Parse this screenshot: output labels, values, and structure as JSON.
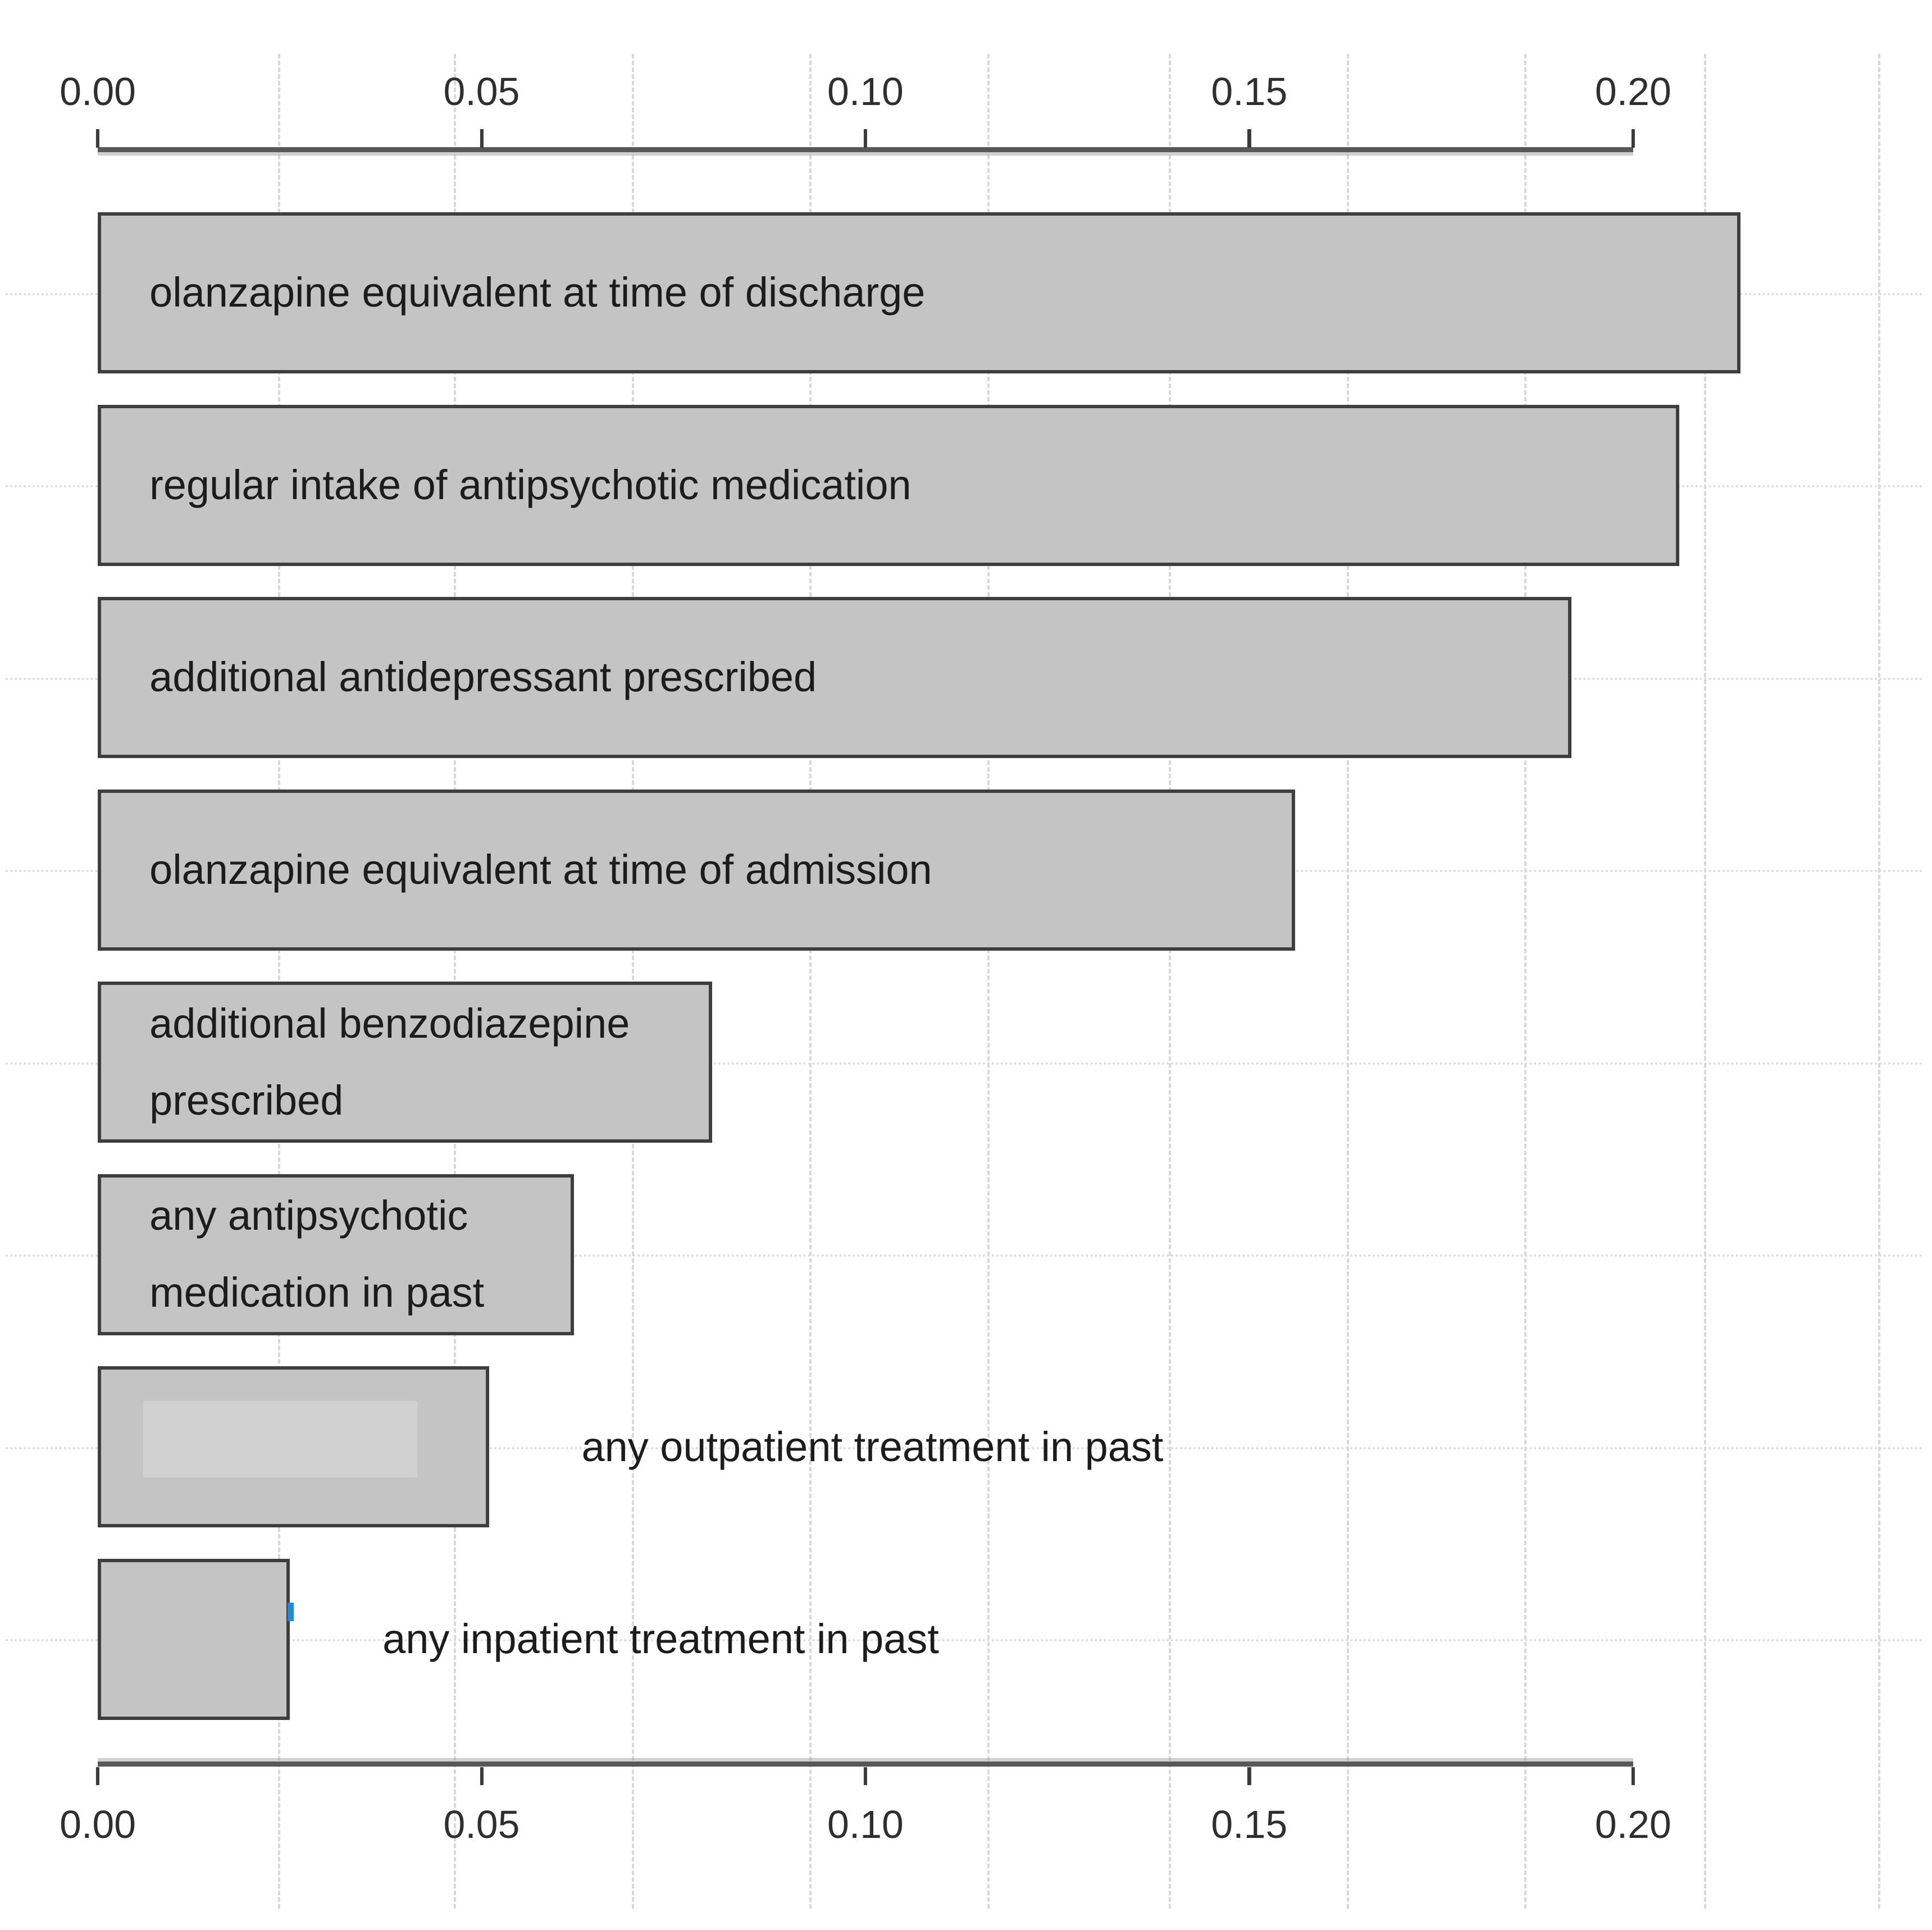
{
  "chart_data": {
    "type": "bar",
    "orientation": "horizontal",
    "title": "",
    "xlabel": "",
    "ylabel": "",
    "x_axis": {
      "min": 0,
      "max": 0.2,
      "position": "top and bottom (mirrored)",
      "ticks": [
        {
          "value": 0.0,
          "label": "0.00"
        },
        {
          "value": 0.05,
          "label": "0.05"
        },
        {
          "value": 0.1,
          "label": "0.10"
        },
        {
          "value": 0.15,
          "label": "0.15"
        },
        {
          "value": 0.2,
          "label": "0.20"
        }
      ]
    },
    "categories": [
      "olanzapine equivalent at time of discharge",
      "regular intake of antipsychotic medication",
      "additional antidepressant prescribed",
      "olanzapine equivalent at time of admission",
      "additional benzodiazepine prescribed",
      "any antipsychotic medication in past",
      "any outpatient treatment in past",
      "any inpatient treatment in past"
    ],
    "values": [
      0.214,
      0.206,
      0.192,
      0.156,
      0.08,
      0.062,
      0.051,
      0.025
    ],
    "bars": [
      {
        "label": "olanzapine equivalent at time of discharge",
        "lines": [
          "olanzapine equivalent at time of discharge"
        ],
        "value": 0.214,
        "label_position": "inside"
      },
      {
        "label": "regular intake of antipsychotic medication",
        "lines": [
          "regular intake of antipsychotic medication"
        ],
        "value": 0.206,
        "label_position": "inside"
      },
      {
        "label": "additional antidepressant prescribed",
        "lines": [
          "additional antidepressant prescribed"
        ],
        "value": 0.192,
        "label_position": "inside"
      },
      {
        "label": "olanzapine equivalent at time of admission",
        "lines": [
          "olanzapine equivalent at time of admission"
        ],
        "value": 0.156,
        "label_position": "inside"
      },
      {
        "label": "additional benzodiazepine prescribed",
        "lines": [
          "additional benzodiazepine",
          "prescribed"
        ],
        "value": 0.08,
        "label_position": "inside"
      },
      {
        "label": "any antipsychotic medication in past",
        "lines": [
          "any antipsychotic",
          "medication in past"
        ],
        "value": 0.062,
        "label_position": "inside"
      },
      {
        "label": "any outpatient treatment in past",
        "lines": [
          "any outpatient treatment in past"
        ],
        "value": 0.051,
        "label_position": "right"
      },
      {
        "label": "any inpatient treatment in past",
        "lines": [
          "any inpatient treatment in past"
        ],
        "value": 0.025,
        "label_position": "right"
      }
    ],
    "legend": null,
    "grid": {
      "vertical_dashed_lines": 10,
      "horizontal_dotted_lines_at_each_bar_row": true
    },
    "colors": {
      "bar_fill": "#c4c4c4",
      "bar_border": "#3e3e3e",
      "gridline": "#d9d9d9",
      "axis_line": "#585858",
      "tick_mark": "#3a3a3a",
      "text": "#1c1c1c",
      "artifact_blue_mark": "#2b87d3"
    }
  }
}
